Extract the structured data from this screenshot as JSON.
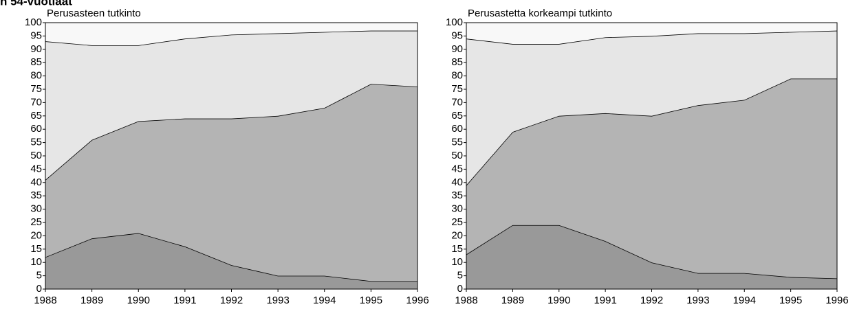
{
  "heading": "n 54-vuotiaat",
  "chart_data": [
    {
      "type": "stacked_area",
      "title": "Perusasteen tutkinto",
      "x": [
        1988,
        1989,
        1990,
        1991,
        1992,
        1993,
        1994,
        1995,
        1996
      ],
      "xlim": [
        1988,
        1996
      ],
      "xticks": [
        1988,
        1989,
        1990,
        1991,
        1992,
        1993,
        1994,
        1995,
        1996
      ],
      "ylim": [
        0,
        100
      ],
      "yticks": [
        0,
        5,
        10,
        15,
        20,
        25,
        30,
        35,
        40,
        45,
        50,
        55,
        60,
        65,
        70,
        75,
        80,
        85,
        90,
        95,
        100
      ],
      "series": [
        {
          "color": "#999999",
          "values": [
            12,
            19,
            21,
            16,
            9,
            5,
            5,
            3,
            3
          ]
        },
        {
          "color": "#b4b4b4",
          "values": [
            29,
            37,
            42,
            48,
            55,
            60,
            63,
            74,
            73
          ]
        },
        {
          "color": "#e6e6e6",
          "values": [
            52,
            35.5,
            28.5,
            30,
            31.5,
            31,
            28.5,
            20,
            21
          ]
        },
        {
          "color": "#f8f8f8",
          "values": [
            7,
            8.5,
            8.5,
            6,
            4.5,
            4,
            3.5,
            3,
            3
          ]
        }
      ]
    },
    {
      "type": "stacked_area",
      "title": "Perusastetta korkeampi tutkinto",
      "x": [
        1988,
        1989,
        1990,
        1991,
        1992,
        1993,
        1994,
        1995,
        1996
      ],
      "xlim": [
        1988,
        1996
      ],
      "xticks": [
        1988,
        1989,
        1990,
        1991,
        1992,
        1993,
        1994,
        1995,
        1996
      ],
      "ylim": [
        0,
        100
      ],
      "yticks": [
        0,
        5,
        10,
        15,
        20,
        25,
        30,
        35,
        40,
        45,
        50,
        55,
        60,
        65,
        70,
        75,
        80,
        85,
        90,
        95,
        100
      ],
      "series": [
        {
          "color": "#999999",
          "values": [
            13,
            24,
            24,
            18,
            10,
            6,
            6,
            4.5,
            4
          ]
        },
        {
          "color": "#b4b4b4",
          "values": [
            26,
            35,
            41,
            48,
            55,
            63,
            65,
            74.5,
            75
          ]
        },
        {
          "color": "#e6e6e6",
          "values": [
            55,
            33,
            27,
            28.5,
            30,
            27,
            25,
            17.5,
            18
          ]
        },
        {
          "color": "#f8f8f8",
          "values": [
            6,
            8,
            8,
            5.5,
            5,
            4,
            4,
            3.5,
            3
          ]
        }
      ]
    }
  ]
}
